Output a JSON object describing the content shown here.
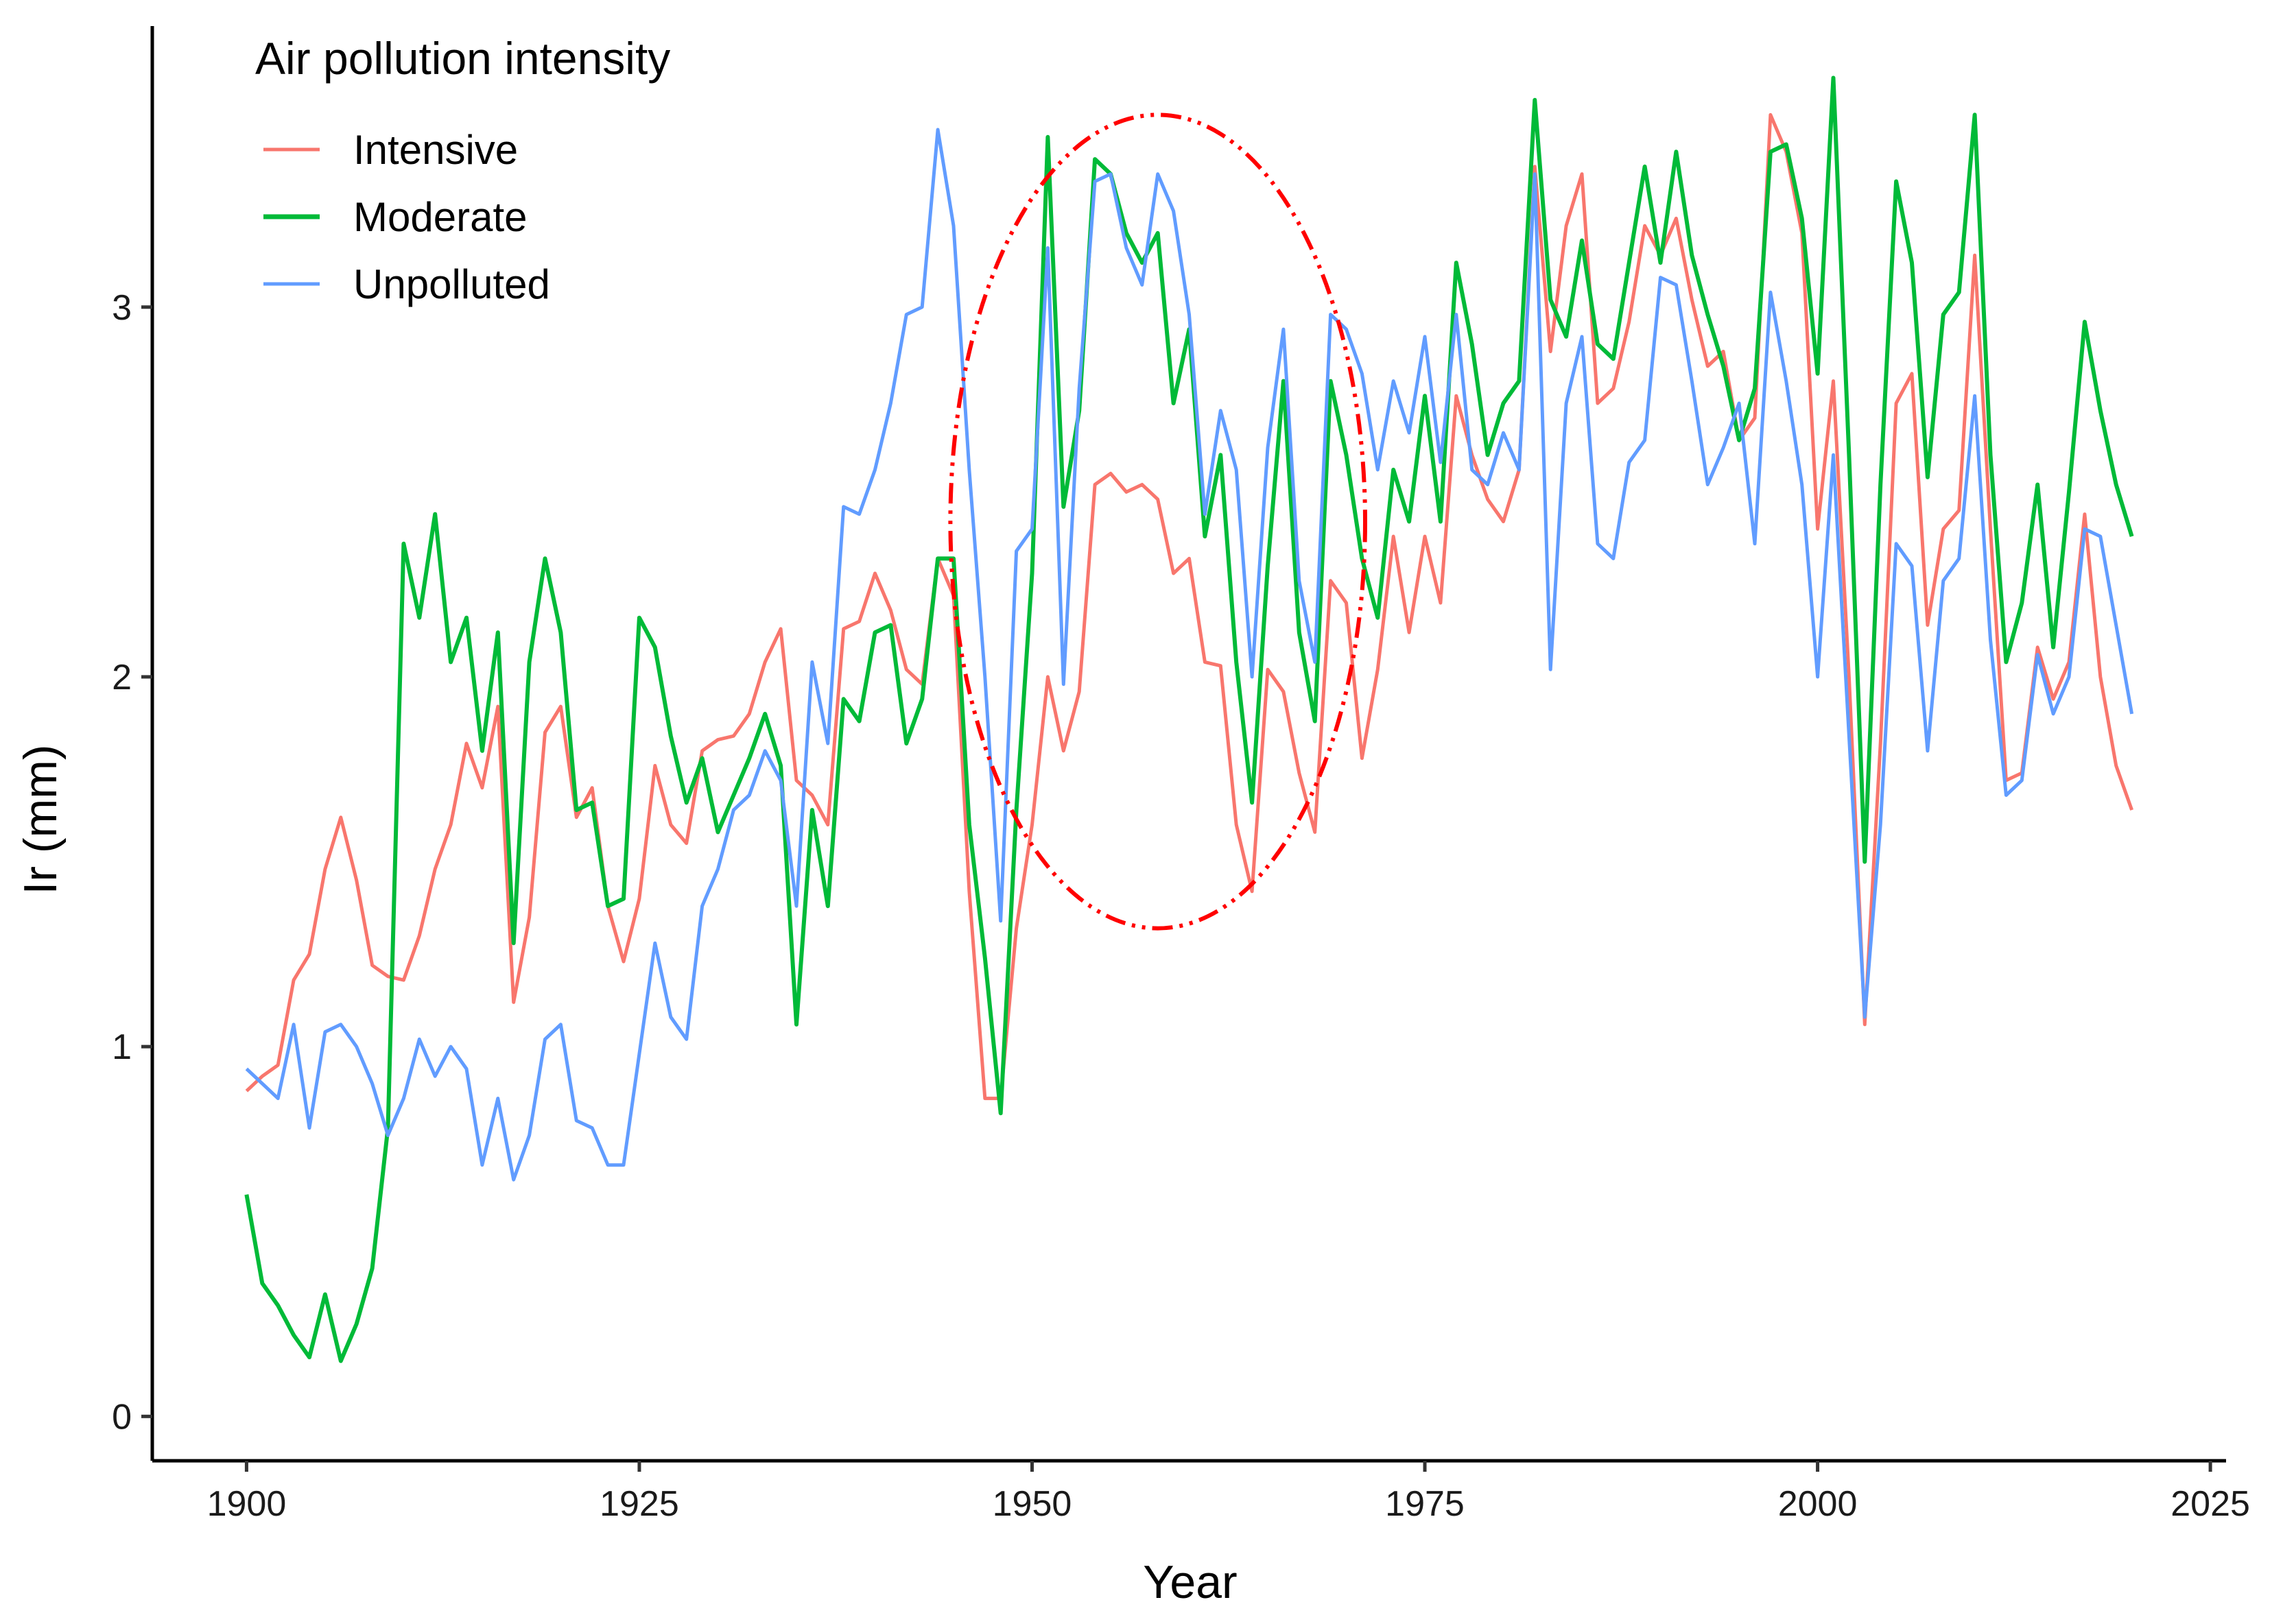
{
  "chart_data": {
    "type": "line",
    "title": "",
    "xlabel": "Year",
    "ylabel": "Ir (mm)",
    "xlim": [
      1894,
      2026
    ],
    "ylim": [
      -0.12,
      3.76
    ],
    "x_ticks": [
      1900,
      1925,
      1950,
      1975,
      2000,
      2025
    ],
    "y_ticks": [
      0,
      1,
      2,
      3
    ],
    "grid": false,
    "legend": {
      "title": "Air pollution intensity",
      "position": "top-left",
      "entries": [
        "Intensive",
        "Moderate",
        "Unpolluted"
      ]
    },
    "x": [
      1900,
      1901,
      1902,
      1903,
      1904,
      1905,
      1906,
      1907,
      1908,
      1909,
      1910,
      1911,
      1912,
      1913,
      1914,
      1915,
      1916,
      1917,
      1918,
      1919,
      1920,
      1921,
      1922,
      1923,
      1924,
      1925,
      1926,
      1927,
      1928,
      1929,
      1930,
      1931,
      1932,
      1933,
      1934,
      1935,
      1936,
      1937,
      1938,
      1939,
      1940,
      1941,
      1942,
      1943,
      1944,
      1945,
      1946,
      1947,
      1948,
      1949,
      1950,
      1951,
      1952,
      1953,
      1954,
      1955,
      1956,
      1957,
      1958,
      1959,
      1960,
      1961,
      1962,
      1963,
      1964,
      1965,
      1966,
      1967,
      1968,
      1969,
      1970,
      1971,
      1972,
      1973,
      1974,
      1975,
      1976,
      1977,
      1978,
      1979,
      1980,
      1981,
      1982,
      1983,
      1984,
      1985,
      1986,
      1987,
      1988,
      1989,
      1990,
      1991,
      1992,
      1993,
      1994,
      1995,
      1996,
      1997,
      1998,
      1999,
      2000,
      2001,
      2002,
      2003,
      2004,
      2005,
      2006,
      2007,
      2008,
      2009,
      2010,
      2011,
      2012,
      2013,
      2014,
      2015,
      2016,
      2017,
      2018,
      2019,
      2020
    ],
    "series": [
      {
        "name": "Intensive",
        "color": "#F8766D",
        "values": [
          0.88,
          0.92,
          0.95,
          1.18,
          1.25,
          1.48,
          1.62,
          1.45,
          1.22,
          1.19,
          1.18,
          1.3,
          1.48,
          1.6,
          1.82,
          1.7,
          1.92,
          1.12,
          1.35,
          1.85,
          1.92,
          1.62,
          1.7,
          1.38,
          1.23,
          1.4,
          1.76,
          1.6,
          1.55,
          1.8,
          1.83,
          1.84,
          1.9,
          2.04,
          2.13,
          1.72,
          1.68,
          1.6,
          2.13,
          2.15,
          2.28,
          2.18,
          2.02,
          1.98,
          2.32,
          2.22,
          1.42,
          0.86,
          0.86,
          1.32,
          1.6,
          2.0,
          1.8,
          1.96,
          2.52,
          2.55,
          2.5,
          2.52,
          2.48,
          2.28,
          2.32,
          2.04,
          2.03,
          1.6,
          1.42,
          2.02,
          1.96,
          1.74,
          1.58,
          2.26,
          2.2,
          1.78,
          2.02,
          2.38,
          2.12,
          2.38,
          2.2,
          2.76,
          2.6,
          2.48,
          2.42,
          2.56,
          3.38,
          2.88,
          3.22,
          3.36,
          2.74,
          2.78,
          2.96,
          3.22,
          3.14,
          3.24,
          3.02,
          2.84,
          2.88,
          2.64,
          2.7,
          3.52,
          3.42,
          3.2,
          2.4,
          2.8,
          2.0,
          1.06,
          1.82,
          2.74,
          2.82,
          2.14,
          2.4,
          2.45,
          3.14,
          2.4,
          1.72,
          1.74,
          2.08,
          1.94,
          2.04,
          2.44,
          2.0,
          1.76,
          1.64
        ]
      },
      {
        "name": "Moderate",
        "color": "#00BA38",
        "values": [
          0.6,
          0.36,
          0.3,
          0.22,
          0.16,
          0.33,
          0.15,
          0.25,
          0.4,
          0.78,
          2.36,
          2.16,
          2.44,
          2.04,
          2.16,
          1.8,
          2.12,
          1.28,
          2.04,
          2.32,
          2.12,
          1.64,
          1.66,
          1.38,
          1.4,
          2.16,
          2.08,
          1.84,
          1.66,
          1.78,
          1.58,
          1.68,
          1.78,
          1.9,
          1.76,
          1.06,
          1.64,
          1.38,
          1.94,
          1.88,
          2.12,
          2.14,
          1.82,
          1.94,
          2.32,
          2.32,
          1.6,
          1.24,
          0.82,
          1.64,
          2.28,
          3.46,
          2.46,
          2.72,
          3.4,
          3.36,
          3.2,
          3.12,
          3.2,
          2.74,
          2.94,
          2.38,
          2.6,
          2.04,
          1.66,
          2.3,
          2.8,
          2.12,
          1.88,
          2.8,
          2.6,
          2.32,
          2.16,
          2.56,
          2.42,
          2.76,
          2.42,
          3.12,
          2.9,
          2.6,
          2.74,
          2.8,
          3.56,
          3.02,
          2.92,
          3.18,
          2.9,
          2.86,
          3.12,
          3.38,
          3.12,
          3.42,
          3.14,
          2.98,
          2.84,
          2.64,
          2.78,
          3.42,
          3.44,
          3.24,
          2.82,
          3.62,
          2.6,
          1.5,
          2.52,
          3.34,
          3.12,
          2.54,
          2.98,
          3.04,
          3.52,
          2.6,
          2.04,
          2.2,
          2.52,
          2.08,
          2.5,
          2.96,
          2.72,
          2.52,
          2.38
        ]
      },
      {
        "name": "Unpolluted",
        "color": "#619CFF",
        "values": [
          0.94,
          0.9,
          0.86,
          1.06,
          0.78,
          1.04,
          1.06,
          1.0,
          0.9,
          0.76,
          0.86,
          1.02,
          0.92,
          1.0,
          0.94,
          0.68,
          0.86,
          0.64,
          0.76,
          1.02,
          1.06,
          0.8,
          0.78,
          0.68,
          0.68,
          0.98,
          1.28,
          1.08,
          1.02,
          1.38,
          1.48,
          1.64,
          1.68,
          1.8,
          1.72,
          1.38,
          2.04,
          1.82,
          2.46,
          2.44,
          2.56,
          2.74,
          2.98,
          3.0,
          3.48,
          3.22,
          2.56,
          2.0,
          1.34,
          2.34,
          2.4,
          3.16,
          1.98,
          2.78,
          3.34,
          3.36,
          3.16,
          3.06,
          3.36,
          3.26,
          2.98,
          2.44,
          2.72,
          2.56,
          2.0,
          2.62,
          2.94,
          2.26,
          2.04,
          2.98,
          2.94,
          2.82,
          2.56,
          2.8,
          2.66,
          2.92,
          2.58,
          2.98,
          2.56,
          2.52,
          2.66,
          2.56,
          3.36,
          2.02,
          2.74,
          2.92,
          2.36,
          2.32,
          2.58,
          2.64,
          3.08,
          3.06,
          2.8,
          2.52,
          2.62,
          2.74,
          2.36,
          3.04,
          2.8,
          2.52,
          2.0,
          2.6,
          1.84,
          1.08,
          1.6,
          2.36,
          2.3,
          1.8,
          2.26,
          2.32,
          2.76,
          2.1,
          1.68,
          1.72,
          2.06,
          1.9,
          2.0,
          2.4,
          2.38,
          2.14,
          1.9
        ]
      }
    ],
    "annotation": {
      "shape": "ellipse",
      "style": "dash-dot",
      "color": "#FF0000",
      "center": [
        1958,
        2.42
      ],
      "radius_x": 13.2,
      "radius_y": 1.1
    }
  }
}
